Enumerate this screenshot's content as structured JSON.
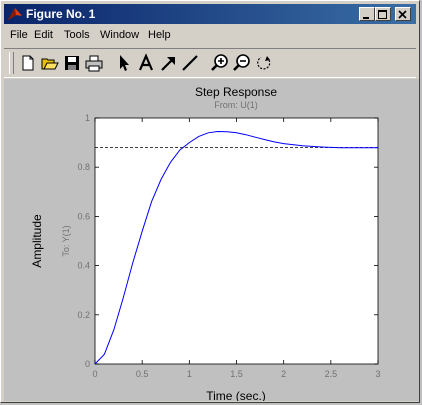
{
  "window": {
    "title": "Figure No. 1"
  },
  "menu": [
    "File",
    "Edit",
    "Tools",
    "Window",
    "Help"
  ],
  "toolbar": [
    "new-icon",
    "open-icon",
    "save-icon",
    "print-icon",
    "pointer-icon",
    "text-icon",
    "arrow-icon",
    "line-icon",
    "zoom-in-icon",
    "zoom-out-icon",
    "rotate-icon"
  ],
  "chart_data": {
    "type": "line",
    "title": "Step Response",
    "subtitle": "From: U(1)",
    "xlabel": "Time (sec.)",
    "ylabel": "Amplitude",
    "ylabel2": "To: Y(1)",
    "xlim": [
      0,
      3
    ],
    "ylim": [
      0,
      1
    ],
    "xticks": [
      "0",
      "0.5",
      "1",
      "1.5",
      "2",
      "2.5",
      "3"
    ],
    "yticks": [
      "0",
      "0.2",
      "0.4",
      "0.6",
      "0.8",
      "1"
    ],
    "grid": false,
    "reference_line": 0.88,
    "series": [
      {
        "x": [
          0,
          0.1,
          0.2,
          0.3,
          0.4,
          0.5,
          0.6,
          0.7,
          0.8,
          0.9,
          1.0,
          1.1,
          1.2,
          1.3,
          1.4,
          1.5,
          1.6,
          1.7,
          1.8,
          1.9,
          2.0,
          2.2,
          2.4,
          2.6,
          2.8,
          3.0
        ],
        "y": [
          0,
          0.04,
          0.14,
          0.27,
          0.41,
          0.54,
          0.66,
          0.75,
          0.82,
          0.87,
          0.9,
          0.925,
          0.94,
          0.945,
          0.944,
          0.94,
          0.932,
          0.922,
          0.912,
          0.903,
          0.896,
          0.887,
          0.882,
          0.879,
          0.879,
          0.879
        ],
        "color": "#0000ff"
      }
    ]
  }
}
